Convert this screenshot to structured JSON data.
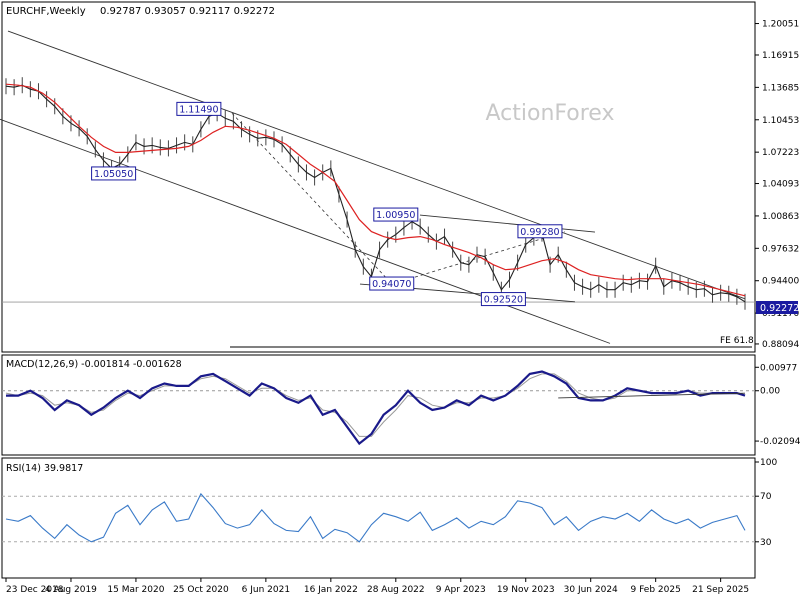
{
  "chart_data": {
    "type": "line",
    "symbol_label": "EURCHF,Weekly",
    "ohlc_label": "0.92787 0.93057 0.92117 0.92272",
    "watermark": "ActionForex",
    "price_axis": {
      "ylim": [
        0.8749,
        1.22
      ],
      "ticks": [
        "1.20051",
        "1.16915",
        "1.13685",
        "1.10453",
        "1.07223",
        "1.04093",
        "1.00863",
        "0.97632",
        "0.94400",
        "0.91170",
        "0.88094"
      ],
      "tick_values": [
        1.20051,
        1.16915,
        1.13685,
        1.10453,
        1.07223,
        1.04093,
        1.00863,
        0.97632,
        0.944,
        0.9117,
        0.88094
      ],
      "last_price_label": "0.92272",
      "last_price": 0.92272
    },
    "x_axis": {
      "labels": [
        "23 Dec 2018",
        "4 Aug 2019",
        "15 Mar 2020",
        "25 Oct 2020",
        "6 Jun 2021",
        "16 Jan 2022",
        "28 Aug 2022",
        "9 Apr 2023",
        "19 Nov 2023",
        "30 Jun 2024",
        "9 Feb 2025",
        "21 Sep 2025"
      ],
      "positions": [
        0,
        32,
        64,
        96,
        128,
        160,
        192,
        224,
        256,
        288,
        320,
        352
      ]
    },
    "series": [
      {
        "name": "EURCHF",
        "color": "#222222",
        "x": [
          0,
          4,
          8,
          12,
          16,
          20,
          24,
          28,
          32,
          36,
          40,
          44,
          48,
          52,
          56,
          60,
          64,
          68,
          72,
          76,
          80,
          84,
          88,
          92,
          96,
          100,
          104,
          108,
          112,
          116,
          120,
          124,
          128,
          132,
          136,
          140,
          144,
          148,
          152,
          156,
          160,
          164,
          168,
          172,
          176,
          180,
          184,
          188,
          192,
          196,
          200,
          204,
          208,
          212,
          216,
          220,
          224,
          228,
          232,
          236,
          240,
          244,
          248,
          252,
          256,
          260,
          264,
          268,
          272,
          276,
          280,
          284,
          288,
          292,
          296,
          300,
          304,
          308,
          312,
          316,
          320,
          324,
          328,
          332,
          336,
          340,
          344,
          348,
          352,
          356,
          360,
          364
        ],
        "values": [
          1.138,
          1.137,
          1.139,
          1.135,
          1.133,
          1.125,
          1.118,
          1.108,
          1.101,
          1.096,
          1.088,
          1.075,
          1.064,
          1.056,
          1.06,
          1.07,
          1.082,
          1.078,
          1.079,
          1.077,
          1.076,
          1.079,
          1.082,
          1.08,
          1.095,
          1.108,
          1.111,
          1.106,
          1.103,
          1.095,
          1.09,
          1.086,
          1.087,
          1.085,
          1.08,
          1.07,
          1.06,
          1.052,
          1.047,
          1.052,
          1.056,
          1.03,
          1.005,
          0.975,
          0.958,
          0.948,
          0.975,
          0.985,
          0.99,
          0.997,
          1.003,
          0.998,
          0.99,
          0.983,
          0.988,
          0.975,
          0.962,
          0.96,
          0.97,
          0.968,
          0.952,
          0.935,
          0.945,
          0.962,
          0.98,
          0.987,
          0.991,
          0.96,
          0.97,
          0.955,
          0.942,
          0.938,
          0.935,
          0.94,
          0.935,
          0.935,
          0.942,
          0.94,
          0.944,
          0.943,
          0.959,
          0.938,
          0.944,
          0.942,
          0.938,
          0.935,
          0.936,
          0.93,
          0.932,
          0.931,
          0.928,
          0.923
        ]
      },
      {
        "name": "MA",
        "color": "#dd2222",
        "x": [
          0,
          6,
          12,
          18,
          24,
          30,
          36,
          42,
          48,
          54,
          60,
          66,
          72,
          78,
          84,
          90,
          96,
          102,
          108,
          114,
          120,
          126,
          132,
          138,
          144,
          150,
          156,
          162,
          168,
          174,
          180,
          186,
          192,
          198,
          204,
          210,
          216,
          222,
          228,
          234,
          240,
          246,
          252,
          258,
          264,
          270,
          276,
          282,
          288,
          294,
          300,
          306,
          312,
          318,
          324,
          330,
          336,
          342,
          348,
          354,
          360,
          364
        ],
        "values": [
          1.14,
          1.139,
          1.137,
          1.131,
          1.122,
          1.11,
          1.098,
          1.087,
          1.078,
          1.072,
          1.072,
          1.073,
          1.074,
          1.075,
          1.076,
          1.078,
          1.084,
          1.092,
          1.098,
          1.097,
          1.094,
          1.09,
          1.086,
          1.08,
          1.07,
          1.06,
          1.052,
          1.043,
          1.024,
          1.005,
          0.993,
          0.988,
          0.985,
          0.987,
          0.988,
          0.985,
          0.98,
          0.976,
          0.972,
          0.967,
          0.96,
          0.955,
          0.956,
          0.96,
          0.964,
          0.966,
          0.962,
          0.955,
          0.95,
          0.948,
          0.946,
          0.945,
          0.946,
          0.946,
          0.946,
          0.944,
          0.942,
          0.94,
          0.937,
          0.934,
          0.931,
          0.929
        ]
      }
    ],
    "annotations": [
      {
        "text": "1.11490",
        "x": 95,
        "y": 1.1149
      },
      {
        "text": "1.05050",
        "x": 53,
        "y": 1.0505
      },
      {
        "text": "1.00950",
        "x": 192,
        "y": 1.0095
      },
      {
        "text": "0.99280",
        "x": 263,
        "y": 0.9928
      },
      {
        "text": "0.94070",
        "x": 190,
        "y": 0.9407
      },
      {
        "text": "0.92520",
        "x": 245,
        "y": 0.9252
      }
    ],
    "fe_label": "FE 61.8",
    "fe_level": 0.8865,
    "macd": {
      "label": "MACD(12,26,9) -0.001814 -0.001628",
      "ticks": [
        "0.00977",
        "0.00",
        "-0.020949"
      ],
      "tick_values": [
        0.00977,
        0.0,
        -0.020949
      ],
      "ylim": [
        -0.0255,
        0.0128
      ],
      "x": [
        0,
        6,
        12,
        18,
        24,
        30,
        36,
        42,
        48,
        54,
        60,
        66,
        72,
        78,
        84,
        90,
        96,
        102,
        108,
        114,
        120,
        126,
        132,
        138,
        144,
        150,
        156,
        162,
        168,
        174,
        180,
        186,
        192,
        198,
        204,
        210,
        216,
        222,
        228,
        234,
        240,
        246,
        252,
        258,
        264,
        270,
        276,
        282,
        288,
        294,
        300,
        306,
        312,
        318,
        324,
        330,
        336,
        342,
        348,
        354,
        360,
        364
      ],
      "values": [
        -0.002,
        -0.002,
        0.0,
        -0.003,
        -0.008,
        -0.004,
        -0.006,
        -0.01,
        -0.007,
        -0.003,
        0.0,
        -0.003,
        0.001,
        0.003,
        0.002,
        0.002,
        0.006,
        0.007,
        0.004,
        0.001,
        -0.002,
        0.003,
        0.001,
        -0.003,
        -0.005,
        -0.002,
        -0.01,
        -0.008,
        -0.015,
        -0.022,
        -0.018,
        -0.01,
        -0.006,
        0.0,
        -0.005,
        -0.008,
        -0.007,
        -0.004,
        -0.006,
        -0.002,
        -0.004,
        -0.002,
        0.002,
        0.007,
        0.008,
        0.006,
        0.003,
        -0.003,
        -0.004,
        -0.004,
        -0.002,
        0.001,
        0.0,
        -0.001,
        -0.001,
        -0.001,
        0.0,
        -0.002,
        -0.001,
        -0.001,
        -0.001,
        -0.002
      ],
      "signal": [
        -0.001,
        -0.002,
        -0.001,
        -0.002,
        -0.006,
        -0.005,
        -0.006,
        -0.009,
        -0.008,
        -0.004,
        -0.001,
        -0.002,
        0.0,
        0.002,
        0.002,
        0.002,
        0.005,
        0.006,
        0.005,
        0.002,
        -0.001,
        0.001,
        0.001,
        -0.002,
        -0.004,
        -0.003,
        -0.008,
        -0.009,
        -0.013,
        -0.019,
        -0.019,
        -0.013,
        -0.008,
        -0.002,
        -0.003,
        -0.006,
        -0.007,
        -0.005,
        -0.005,
        -0.003,
        -0.003,
        -0.002,
        0.001,
        0.005,
        0.007,
        0.007,
        0.004,
        -0.001,
        -0.003,
        -0.004,
        -0.003,
        0.0,
        0.0,
        -0.001,
        -0.001,
        -0.001,
        0.0,
        -0.001,
        -0.001,
        -0.001,
        -0.001,
        -0.002
      ]
    },
    "rsi": {
      "label": "RSI(14) 39.9817",
      "ticks": [
        "100",
        "70",
        "30"
      ],
      "tick_values": [
        100,
        70,
        30
      ],
      "ylim": [
        0,
        100
      ],
      "x": [
        0,
        6,
        12,
        18,
        24,
        30,
        36,
        42,
        48,
        54,
        60,
        66,
        72,
        78,
        84,
        90,
        96,
        102,
        108,
        114,
        120,
        126,
        132,
        138,
        144,
        150,
        156,
        162,
        168,
        174,
        180,
        186,
        192,
        198,
        204,
        210,
        216,
        222,
        228,
        234,
        240,
        246,
        252,
        258,
        264,
        270,
        276,
        282,
        288,
        294,
        300,
        306,
        312,
        318,
        324,
        330,
        336,
        342,
        348,
        354,
        360,
        364
      ],
      "values": [
        50,
        48,
        53,
        42,
        33,
        45,
        36,
        30,
        34,
        55,
        62,
        45,
        58,
        65,
        48,
        50,
        72,
        60,
        46,
        42,
        45,
        58,
        46,
        40,
        39,
        52,
        33,
        41,
        38,
        30,
        45,
        55,
        52,
        48,
        56,
        40,
        45,
        51,
        42,
        48,
        45,
        52,
        66,
        64,
        60,
        45,
        52,
        40,
        48,
        52,
        50,
        55,
        48,
        58,
        50,
        46,
        50,
        42,
        47,
        50,
        53,
        40
      ]
    }
  }
}
